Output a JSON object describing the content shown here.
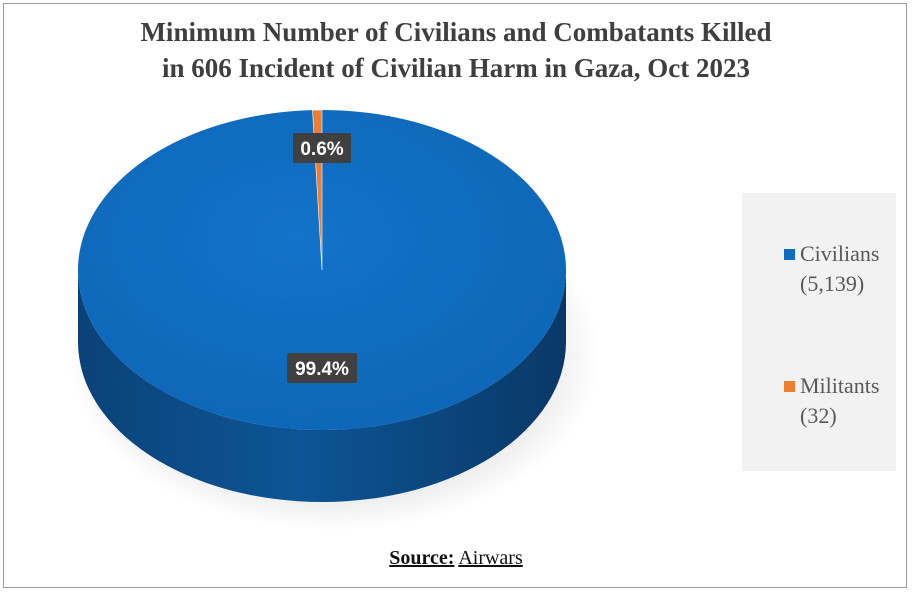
{
  "chart_data": {
    "type": "pie",
    "title_lines": [
      "Minimum Number of  Civilians and Combatants Killed",
      "in 606 Incident of  Civilian Harm in Gaza, Oct 2023"
    ],
    "slices": [
      {
        "name": "Civilians",
        "count_label": "(5,139)",
        "value": 5139,
        "percent": 99.4,
        "label": "99.4%",
        "color": "#0f6cbf"
      },
      {
        "name": "Militants",
        "count_label": "(32)",
        "value": 32,
        "percent": 0.6,
        "label": "0.6%",
        "color": "#ed7d31"
      }
    ],
    "legend_position": "right",
    "three_d": true
  },
  "source": {
    "label": "Source:",
    "name": "Airwars"
  },
  "colors": {
    "civilians_dark": "#0a4a84",
    "civilians_side": "#0b3f72",
    "label_box": "#404040",
    "title": "#3f3f3f"
  }
}
